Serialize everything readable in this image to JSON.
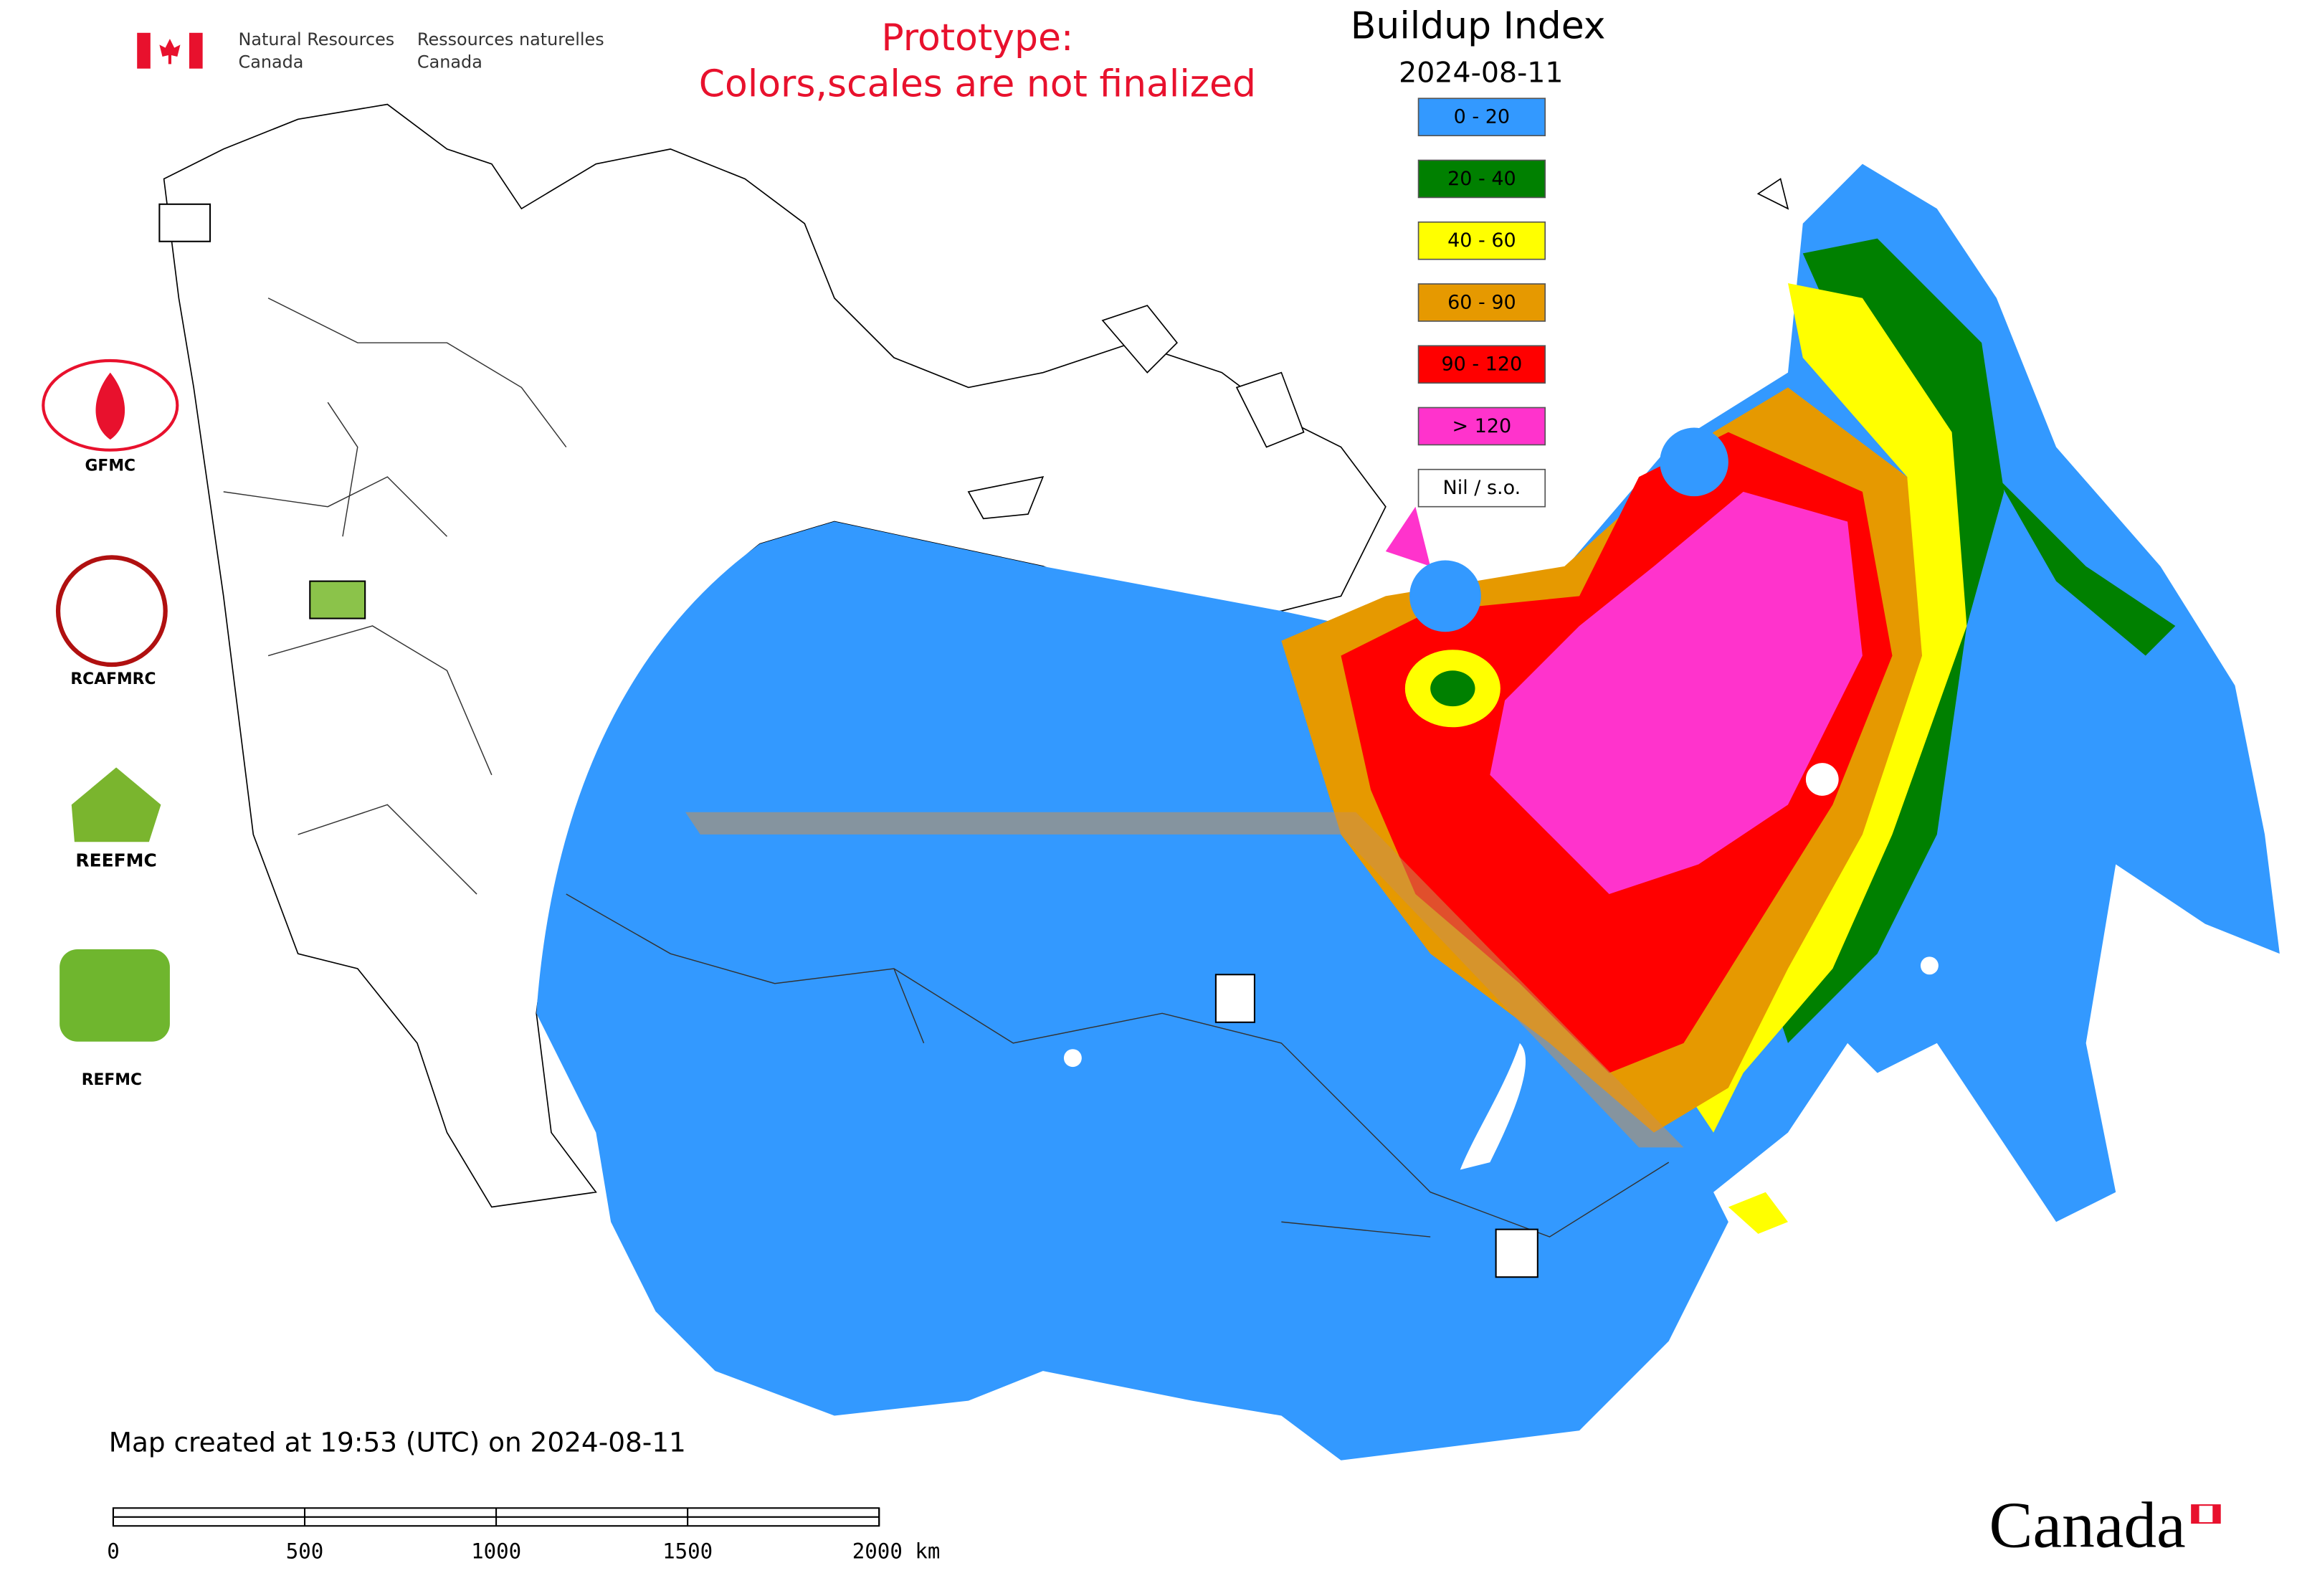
{
  "header": {
    "department_en": [
      "Natural Resources",
      "Canada"
    ],
    "department_fr": [
      "Ressources naturelles",
      "Canada"
    ]
  },
  "notice": [
    "Prototype:",
    "Colors,scales are not finalized"
  ],
  "title": "Buildup Index",
  "date": "2024-08-11",
  "legend": [
    {
      "label": "0 - 20",
      "color": "#3399ff"
    },
    {
      "label": "20 - 40",
      "color": "#008000"
    },
    {
      "label": "40 - 60",
      "color": "#ffff00"
    },
    {
      "label": "60 - 90",
      "color": "#e69900"
    },
    {
      "label": "90 - 120",
      "color": "#ff0000"
    },
    {
      "label": "> 120",
      "color": "#ff33cc"
    },
    {
      "label": "Nil / s.o.",
      "color": "#ffffff"
    }
  ],
  "partners": [
    "GFMC",
    "RCAFMRC",
    "REEFMC",
    "REFMC"
  ],
  "footer": "Map created at 19:53 (UTC) on 2024-08-11",
  "scale_bar": [
    "0",
    "500",
    "1000",
    "1500",
    "2000 km"
  ],
  "wordmark": "Canada"
}
